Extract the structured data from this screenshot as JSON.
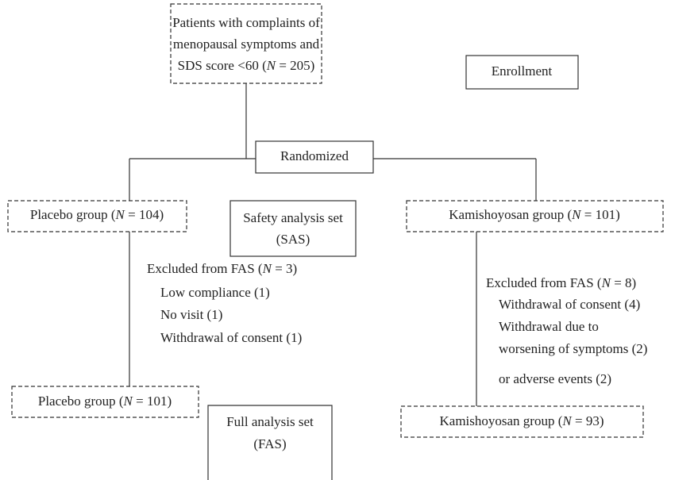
{
  "enrollment": {
    "patients": [
      "Patients with complaints of",
      "menopausal symptoms and",
      "SDS score <60 (N = 205)"
    ],
    "label": "Enrollment"
  },
  "randomized": "Randomized",
  "allocation": {
    "placebo": "Placebo group (N = 104)",
    "safety_set": [
      "Safety analysis set",
      "(SAS)"
    ],
    "kamishoyosan": "Kamishoyosan group (N = 101)"
  },
  "exclusions": {
    "placebo": {
      "title": "Excluded from FAS (N = 3)",
      "items": [
        "Low compliance (1)",
        "No visit (1)",
        "Withdrawal of consent (1)"
      ]
    },
    "kamishoyosan": {
      "title": "Excluded from FAS (N = 8)",
      "items": [
        "Withdrawal of consent (4)",
        "Withdrawal due to",
        "worsening of symptoms (2)",
        "or adverse events (2)"
      ]
    }
  },
  "analysis": {
    "placebo": "Placebo group (N = 101)",
    "full_set": [
      "Full analysis set",
      "(FAS)"
    ],
    "kamishoyosan": "Kamishoyosan group (N = 93)"
  }
}
